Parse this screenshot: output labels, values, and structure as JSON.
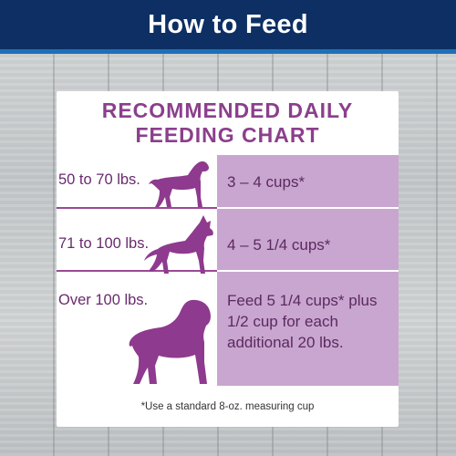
{
  "header": {
    "title": "How to Feed"
  },
  "chart": {
    "title_line1": "RECOMMENDED DAILY",
    "title_line2": "FEEDING CHART",
    "rows": [
      {
        "weight": "50 to 70 lbs.",
        "amount": "3 – 4 cups*",
        "icon": "rottweiler-silhouette-icon"
      },
      {
        "weight": "71 to 100 lbs.",
        "amount": "4 – 5 1/4 cups*",
        "icon": "shepherd-silhouette-icon"
      },
      {
        "weight": "Over 100 lbs.",
        "amount": "Feed 5 1/4 cups* plus 1/2 cup for each additional 20 lbs.",
        "icon": "mastiff-silhouette-icon"
      }
    ],
    "footnote": "*Use a standard 8-oz. measuring cup"
  },
  "colors": {
    "header": "#0d2f63",
    "header_stripe": "#1f6fb8",
    "title_purple": "#8b3f8c",
    "column_purple": "#c9a6d0",
    "dog_purple": "#8e3a8e"
  }
}
